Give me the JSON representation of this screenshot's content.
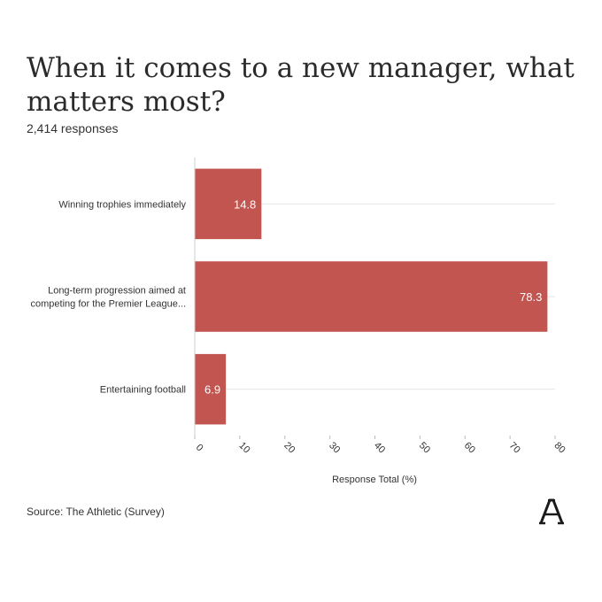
{
  "title": "When it comes to a new manager, what matters most?",
  "subtitle": "2,414 responses",
  "source": "Source: The Athletic (Survey)",
  "colors": {
    "bar": "#c25550",
    "grid": "#e6e6e6",
    "text": "#333333"
  },
  "chart_data": {
    "type": "bar",
    "orientation": "horizontal",
    "categories": [
      [
        "Winning trophies immediately"
      ],
      [
        "Long-term progression aimed at",
        "competing for the Premier League..."
      ],
      [
        "Entertaining football"
      ]
    ],
    "values": [
      14.8,
      78.3,
      6.9
    ],
    "data_labels": [
      "14.8",
      "78.3",
      "6.9"
    ],
    "xlabel": "Response Total (%)",
    "xlim": [
      0,
      80
    ],
    "xticks": [
      0,
      10,
      20,
      30,
      40,
      50,
      60,
      70,
      80
    ],
    "grid": true
  }
}
